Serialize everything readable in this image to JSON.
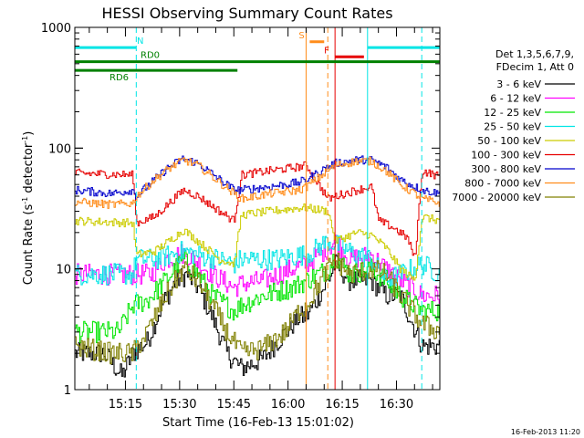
{
  "chart_data": {
    "type": "line",
    "title": "HESSI Observing Summary Count Rates",
    "xlabel": "Start Time (16-Feb-13 15:01:02)",
    "ylabel_main": "Count Rate (s",
    "ylabel_sup": "-1",
    "ylabel_mid": " detector",
    "ylabel_sup2": "-1",
    "ylabel_end": ")",
    "yscale": "log",
    "ylim": [
      1,
      1000
    ],
    "xlim_minutes": [
      0,
      101
    ],
    "y_ticks": [
      {
        "value": 1,
        "label": "1"
      },
      {
        "value": 10,
        "label": "10"
      },
      {
        "value": 100,
        "label": "100"
      },
      {
        "value": 1000,
        "label": "1000"
      }
    ],
    "x_ticks": [
      {
        "minute": 14,
        "label": "15:15"
      },
      {
        "minute": 29,
        "label": "15:30"
      },
      {
        "minute": 44,
        "label": "15:45"
      },
      {
        "minute": 59,
        "label": "16:00"
      },
      {
        "minute": 74,
        "label": "16:15"
      },
      {
        "minute": 89,
        "label": "16:30"
      }
    ],
    "legend": {
      "header1": "Det 1,3,5,6,7,9,",
      "header2": "FDecim 1, Att 0",
      "entries": [
        {
          "label": "3 - 6 keV",
          "color": "#000000"
        },
        {
          "label": "6 - 12 keV",
          "color": "#ff00ff"
        },
        {
          "label": "12 - 25 keV",
          "color": "#00e600"
        },
        {
          "label": "25 - 50 keV",
          "color": "#00e5e5"
        },
        {
          "label": "50 - 100 keV",
          "color": "#cccc00"
        },
        {
          "label": "100 - 300 keV",
          "color": "#e60000"
        },
        {
          "label": "300 - 800 keV",
          "color": "#0000cc"
        },
        {
          "label": "800 - 7000 keV",
          "color": "#ff8c1a"
        },
        {
          "label": "7000 - 20000 keV",
          "color": "#808000"
        }
      ]
    },
    "series": [
      {
        "name": "3 - 6 keV",
        "color": "#000000",
        "points": [
          [
            0,
            2
          ],
          [
            8,
            2
          ],
          [
            13,
            1.3
          ],
          [
            16,
            2
          ],
          [
            20,
            2.5
          ],
          [
            24,
            5
          ],
          [
            28,
            8
          ],
          [
            31,
            9
          ],
          [
            34,
            7
          ],
          [
            38,
            4
          ],
          [
            42,
            2
          ],
          [
            46,
            1.5
          ],
          [
            52,
            1.8
          ],
          [
            56,
            2.5
          ],
          [
            62,
            4
          ],
          [
            64,
            4
          ],
          [
            70,
            8
          ],
          [
            72,
            11
          ],
          [
            76,
            8
          ],
          [
            82,
            8
          ],
          [
            86,
            6
          ],
          [
            90,
            6
          ],
          [
            96,
            2.3
          ],
          [
            101,
            2.3
          ]
        ]
      },
      {
        "name": "6 - 12 keV",
        "color": "#ff00ff",
        "points": [
          [
            0,
            9
          ],
          [
            12,
            9
          ],
          [
            17,
            9
          ],
          [
            21,
            9
          ],
          [
            25,
            12
          ],
          [
            30,
            13.5
          ],
          [
            33,
            12
          ],
          [
            38,
            9
          ],
          [
            44,
            7
          ],
          [
            46,
            7.5
          ],
          [
            52,
            8
          ],
          [
            60,
            10
          ],
          [
            64,
            11
          ],
          [
            70,
            15
          ],
          [
            72,
            17
          ],
          [
            76,
            12
          ],
          [
            82,
            13
          ],
          [
            86,
            10
          ],
          [
            90,
            8
          ],
          [
            96,
            6
          ],
          [
            101,
            6
          ]
        ]
      },
      {
        "name": "12 - 25 keV",
        "color": "#00e600",
        "points": [
          [
            0,
            3
          ],
          [
            12,
            3
          ],
          [
            16,
            5
          ],
          [
            20,
            5.5
          ],
          [
            25,
            8
          ],
          [
            30,
            12
          ],
          [
            34,
            9
          ],
          [
            38,
            6
          ],
          [
            44,
            4.5
          ],
          [
            46,
            5
          ],
          [
            52,
            6
          ],
          [
            60,
            7
          ],
          [
            64,
            8
          ],
          [
            70,
            10
          ],
          [
            72,
            13
          ],
          [
            76,
            9
          ],
          [
            82,
            10
          ],
          [
            86,
            8
          ],
          [
            90,
            6
          ],
          [
            96,
            4.5
          ],
          [
            101,
            4.5
          ]
        ]
      },
      {
        "name": "25 - 50 keV",
        "color": "#00e5e5",
        "points": [
          [
            0,
            9
          ],
          [
            16,
            9
          ],
          [
            17,
            12
          ],
          [
            22,
            12
          ],
          [
            26,
            13
          ],
          [
            30,
            14
          ],
          [
            34,
            13
          ],
          [
            40,
            12
          ],
          [
            44,
            11
          ],
          [
            46,
            12
          ],
          [
            56,
            12
          ],
          [
            62,
            13
          ],
          [
            64,
            13
          ],
          [
            70,
            17
          ],
          [
            72,
            16
          ],
          [
            78,
            13
          ],
          [
            82,
            12
          ],
          [
            86,
            8
          ],
          [
            90,
            9
          ],
          [
            96,
            11
          ],
          [
            101,
            9
          ]
        ]
      },
      {
        "name": "50 - 100 keV",
        "color": "#cccc00",
        "points": [
          [
            0,
            25
          ],
          [
            16,
            24
          ],
          [
            17,
            13
          ],
          [
            22,
            14
          ],
          [
            26,
            17
          ],
          [
            30,
            21
          ],
          [
            34,
            17
          ],
          [
            40,
            12
          ],
          [
            44,
            11
          ],
          [
            46,
            28
          ],
          [
            54,
            30
          ],
          [
            62,
            32
          ],
          [
            64,
            32
          ],
          [
            70,
            30
          ],
          [
            72,
            17
          ],
          [
            78,
            20
          ],
          [
            82,
            19
          ],
          [
            86,
            15
          ],
          [
            90,
            10
          ],
          [
            94,
            8
          ],
          [
            96,
            27
          ],
          [
            101,
            25
          ]
        ]
      },
      {
        "name": "100 - 300 keV",
        "color": "#e60000",
        "points": [
          [
            0,
            62
          ],
          [
            16,
            60
          ],
          [
            17,
            24
          ],
          [
            22,
            27
          ],
          [
            26,
            35
          ],
          [
            30,
            45
          ],
          [
            34,
            40
          ],
          [
            40,
            30
          ],
          [
            44,
            25
          ],
          [
            46,
            60
          ],
          [
            54,
            65
          ],
          [
            62,
            70
          ],
          [
            64,
            72
          ],
          [
            70,
            38
          ],
          [
            72,
            40
          ],
          [
            78,
            45
          ],
          [
            82,
            48
          ],
          [
            84,
            25
          ],
          [
            88,
            22
          ],
          [
            92,
            18
          ],
          [
            94,
            12
          ],
          [
            96,
            65
          ],
          [
            101,
            58
          ]
        ]
      },
      {
        "name": "300 - 800 keV",
        "color": "#0000cc",
        "points": [
          [
            0,
            45
          ],
          [
            10,
            42
          ],
          [
            16,
            45
          ],
          [
            17,
            40
          ],
          [
            22,
            55
          ],
          [
            26,
            70
          ],
          [
            30,
            82
          ],
          [
            34,
            75
          ],
          [
            40,
            55
          ],
          [
            44,
            45
          ],
          [
            46,
            45
          ],
          [
            54,
            48
          ],
          [
            62,
            52
          ],
          [
            64,
            55
          ],
          [
            70,
            70
          ],
          [
            72,
            75
          ],
          [
            78,
            80
          ],
          [
            82,
            80
          ],
          [
            86,
            70
          ],
          [
            90,
            55
          ],
          [
            94,
            48
          ],
          [
            96,
            45
          ],
          [
            101,
            42
          ]
        ]
      },
      {
        "name": "800 - 7000 keV",
        "color": "#ff8c1a",
        "points": [
          [
            0,
            36
          ],
          [
            10,
            34
          ],
          [
            16,
            35
          ],
          [
            17,
            40
          ],
          [
            22,
            55
          ],
          [
            26,
            68
          ],
          [
            30,
            80
          ],
          [
            34,
            72
          ],
          [
            40,
            52
          ],
          [
            44,
            42
          ],
          [
            46,
            38
          ],
          [
            54,
            42
          ],
          [
            62,
            45
          ],
          [
            64,
            48
          ],
          [
            70,
            65
          ],
          [
            72,
            72
          ],
          [
            78,
            78
          ],
          [
            82,
            78
          ],
          [
            86,
            65
          ],
          [
            90,
            50
          ],
          [
            94,
            42
          ],
          [
            96,
            38
          ],
          [
            101,
            35
          ]
        ]
      },
      {
        "name": "7000 - 20000 keV",
        "color": "#808000",
        "points": [
          [
            0,
            2.3
          ],
          [
            10,
            2
          ],
          [
            16,
            2
          ],
          [
            20,
            3
          ],
          [
            25,
            6
          ],
          [
            30,
            10
          ],
          [
            34,
            8
          ],
          [
            38,
            5
          ],
          [
            42,
            3
          ],
          [
            46,
            2
          ],
          [
            52,
            2.2
          ],
          [
            58,
            3
          ],
          [
            62,
            4.5
          ],
          [
            64,
            5
          ],
          [
            70,
            10
          ],
          [
            72,
            12
          ],
          [
            76,
            9
          ],
          [
            82,
            10
          ],
          [
            86,
            9
          ],
          [
            90,
            6
          ],
          [
            96,
            3.5
          ],
          [
            101,
            3
          ]
        ]
      }
    ],
    "attenuator_states": [
      {
        "label": "N",
        "color": "#00e5e5",
        "segments": [
          [
            0,
            17
          ],
          [
            81,
            101
          ]
        ],
        "level": 680
      },
      {
        "label": "RD0",
        "color": "#008000",
        "segments": [
          [
            0,
            101
          ]
        ],
        "level": 520
      },
      {
        "label": "RD6",
        "color": "#008000",
        "segments": [
          [
            0,
            45
          ]
        ],
        "level": 440
      },
      {
        "label": "S",
        "color": "#ff8c1a",
        "segments": [
          [
            65,
            69
          ]
        ],
        "level": 760
      },
      {
        "label": "F",
        "color": "#e60000",
        "segments": [
          [
            72,
            80
          ]
        ],
        "level": 570
      }
    ],
    "vertical_markers": [
      {
        "minute": 17,
        "color": "#00e5e5",
        "style": "dashed"
      },
      {
        "minute": 64,
        "color": "#ff8c1a",
        "style": "solid"
      },
      {
        "minute": 70,
        "color": "#ff8c1a",
        "style": "dashed"
      },
      {
        "minute": 72,
        "color": "#e60000",
        "style": "solid"
      },
      {
        "minute": 81,
        "color": "#00e5e5",
        "style": "solid"
      },
      {
        "minute": 96,
        "color": "#00e5e5",
        "style": "dashed"
      }
    ],
    "footer_timestamp": "16-Feb-2013 11:20"
  }
}
